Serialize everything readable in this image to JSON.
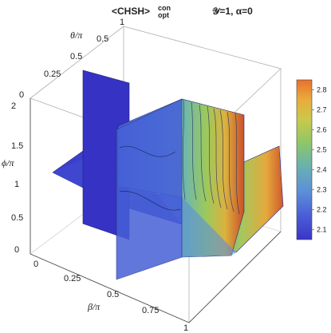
{
  "chart_data": {
    "type": "heatmap",
    "plot_style": "3D slice contour plot",
    "title": {
      "main": "<CHSH>",
      "superscript": "con",
      "subscript": "opt",
      "params": "𝒴=1, α=0"
    },
    "axes": {
      "x": {
        "label": "β/π",
        "range": [
          0,
          1
        ],
        "ticks": [
          "0",
          "0.25",
          "0.5",
          "0.75",
          "1"
        ]
      },
      "y": {
        "label": "θ/π",
        "range": [
          0,
          1
        ],
        "ticks": [
          "0",
          "0.25",
          "0.5",
          "1"
        ]
      },
      "z": {
        "label": "ϕ/π",
        "range": [
          0,
          2
        ],
        "ticks": [
          "0",
          "0.5",
          "1",
          "1.5",
          "2"
        ]
      }
    },
    "slices": [
      {
        "plane": "β/π",
        "value": 0.5
      },
      {
        "plane": "θ/π",
        "value": 0.5
      },
      {
        "plane": "ϕ/π",
        "value": 1
      }
    ],
    "colorbar": {
      "ticks": [
        "2.8",
        "2.7",
        "2.6",
        "2.5",
        "2.4",
        "2.3",
        "2.2",
        "2.1"
      ],
      "min": 2.05,
      "max": 2.85,
      "colors": [
        "#3a35c8",
        "#4a5ed6",
        "#5c8fd8",
        "#67b0b3",
        "#8cc66a",
        "#c9c94a",
        "#e9aa3b",
        "#e9702f"
      ]
    }
  }
}
